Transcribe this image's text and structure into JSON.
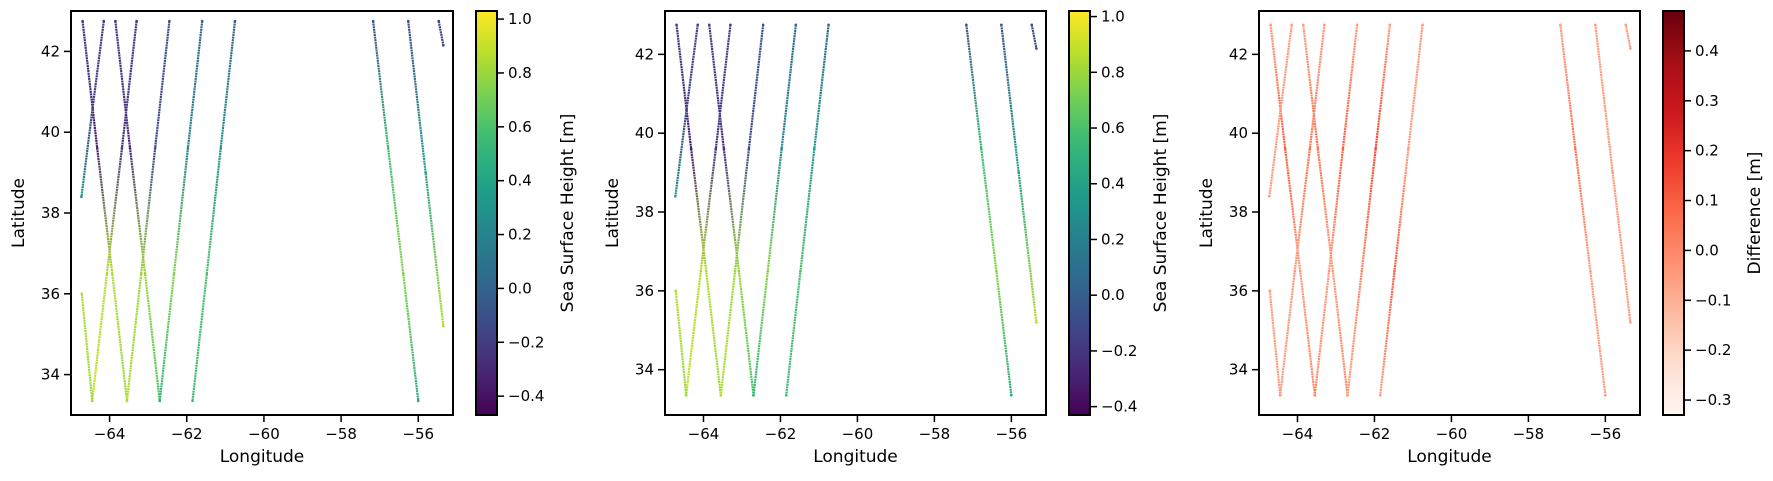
{
  "chart_data": [
    {
      "type": "scatter",
      "xlabel": "Longitude",
      "ylabel": "Latitude",
      "xlim": [
        -65.0,
        -55.1
      ],
      "ylim": [
        33.0,
        43.0
      ],
      "xticks": [
        {
          "value": -64,
          "label": "−64"
        },
        {
          "value": -62,
          "label": "−62"
        },
        {
          "value": -60,
          "label": "−60"
        },
        {
          "value": -58,
          "label": "−58"
        },
        {
          "value": -56,
          "label": "−56"
        }
      ],
      "yticks": [
        34,
        36,
        38,
        40,
        42
      ],
      "colorbar": {
        "label": "Sea Surface Height [m]",
        "colormap": "viridis",
        "lim": [
          -0.47,
          1.03
        ],
        "ticks": [
          {
            "value": -0.4,
            "label": "−0.4"
          },
          {
            "value": -0.2,
            "label": "−0.2"
          },
          {
            "value": 0.0,
            "label": "0.0"
          },
          0.2,
          0.4,
          0.6,
          0.8,
          {
            "value": 1.0,
            "label": "1.0"
          }
        ]
      },
      "tracks": [
        {
          "lon": [
            -64.7,
            -64.32,
            -63.93,
            -63.55
          ],
          "lat": [
            42.75,
            39.6,
            36.5,
            33.35
          ],
          "values": [
            -0.2,
            -0.35,
            0.85,
            0.8
          ]
        },
        {
          "lon": [
            -63.85,
            -63.47,
            -63.08,
            -62.7
          ],
          "lat": [
            42.75,
            39.6,
            36.5,
            33.35
          ],
          "values": [
            -0.2,
            -0.3,
            0.8,
            0.6
          ]
        },
        {
          "lon": [
            -63.3,
            -63.68,
            -64.07,
            -64.45
          ],
          "lat": [
            42.75,
            39.6,
            36.5,
            33.35
          ],
          "values": [
            -0.2,
            -0.25,
            0.85,
            0.9
          ]
        },
        {
          "lon": [
            -62.45,
            -62.82,
            -63.18,
            -63.55
          ],
          "lat": [
            42.75,
            39.6,
            36.5,
            33.35
          ],
          "values": [
            -0.1,
            -0.15,
            0.8,
            0.85
          ]
        },
        {
          "lon": [
            -61.6,
            -61.97,
            -62.33,
            -62.7
          ],
          "lat": [
            42.75,
            39.6,
            36.5,
            33.35
          ],
          "values": [
            0.0,
            0.2,
            0.75,
            0.5
          ]
        },
        {
          "lon": [
            -60.75,
            -61.12,
            -61.48,
            -61.85
          ],
          "lat": [
            42.75,
            39.6,
            36.5,
            33.35
          ],
          "values": [
            0.0,
            0.3,
            0.6,
            0.55
          ]
        },
        {
          "lon": [
            -64.15,
            -64.44,
            -64.73
          ],
          "lat": [
            42.75,
            40.6,
            38.4
          ],
          "values": [
            -0.2,
            -0.2,
            0.3
          ]
        },
        {
          "lon": [
            -64.72,
            -64.45
          ],
          "lat": [
            36.0,
            33.35
          ],
          "values": [
            0.85,
            0.8
          ]
        },
        {
          "lon": [
            -57.17,
            -56.78,
            -56.39,
            -56.0
          ],
          "lat": [
            42.75,
            39.6,
            36.5,
            33.35
          ],
          "values": [
            -0.1,
            0.55,
            0.75,
            0.45
          ]
        },
        {
          "lon": [
            -56.26,
            -55.81,
            -55.35
          ],
          "lat": [
            42.75,
            39.0,
            35.2
          ],
          "values": [
            -0.1,
            0.4,
            0.85
          ]
        },
        {
          "lon": [
            -55.47,
            -55.35
          ],
          "lat": [
            42.75,
            42.15
          ],
          "values": [
            -0.15,
            -0.15
          ]
        }
      ]
    },
    {
      "type": "scatter",
      "xlabel": "Longitude",
      "ylabel": "Latitude",
      "xlim": [
        -65.0,
        -55.1
      ],
      "ylim": [
        32.85,
        43.1
      ],
      "xticks": [
        {
          "value": -64,
          "label": "−64"
        },
        {
          "value": -62,
          "label": "−62"
        },
        {
          "value": -60,
          "label": "−60"
        },
        {
          "value": -58,
          "label": "−58"
        },
        {
          "value": -56,
          "label": "−56"
        }
      ],
      "yticks": [
        34,
        36,
        38,
        40,
        42
      ],
      "colorbar": {
        "label": "Sea Surface Height [m]",
        "colormap": "viridis",
        "lim": [
          -0.43,
          1.02
        ],
        "ticks": [
          {
            "value": -0.4,
            "label": "−0.4"
          },
          {
            "value": -0.2,
            "label": "−0.2"
          },
          {
            "value": 0.0,
            "label": "0.0"
          },
          0.2,
          0.4,
          0.6,
          0.8,
          {
            "value": 1.0,
            "label": "1.0"
          }
        ]
      },
      "tracks": [
        {
          "lon": [
            -64.7,
            -64.32,
            -63.93,
            -63.55
          ],
          "lat": [
            42.75,
            39.6,
            36.5,
            33.35
          ],
          "values": [
            -0.15,
            -0.3,
            0.85,
            0.8
          ]
        },
        {
          "lon": [
            -63.85,
            -63.47,
            -63.08,
            -62.7
          ],
          "lat": [
            42.75,
            39.6,
            36.5,
            33.35
          ],
          "values": [
            -0.15,
            -0.25,
            0.8,
            0.6
          ]
        },
        {
          "lon": [
            -63.3,
            -63.68,
            -64.07,
            -64.45
          ],
          "lat": [
            42.75,
            39.6,
            36.5,
            33.35
          ],
          "values": [
            -0.15,
            -0.2,
            0.85,
            0.9
          ]
        },
        {
          "lon": [
            -62.45,
            -62.82,
            -63.18,
            -63.55
          ],
          "lat": [
            42.75,
            39.6,
            36.5,
            33.35
          ],
          "values": [
            -0.05,
            -0.1,
            0.8,
            0.85
          ]
        },
        {
          "lon": [
            -61.6,
            -61.97,
            -62.33,
            -62.7
          ],
          "lat": [
            42.75,
            39.6,
            36.5,
            33.35
          ],
          "values": [
            0.05,
            0.25,
            0.75,
            0.5
          ]
        },
        {
          "lon": [
            -60.75,
            -61.12,
            -61.48,
            -61.85
          ],
          "lat": [
            42.75,
            39.6,
            36.5,
            33.35
          ],
          "values": [
            0.05,
            0.35,
            0.6,
            0.55
          ]
        },
        {
          "lon": [
            -64.15,
            -64.44,
            -64.73
          ],
          "lat": [
            42.75,
            40.6,
            38.4
          ],
          "values": [
            -0.15,
            -0.15,
            0.3
          ]
        },
        {
          "lon": [
            -64.72,
            -64.45
          ],
          "lat": [
            36.0,
            33.35
          ],
          "values": [
            0.85,
            0.8
          ]
        },
        {
          "lon": [
            -57.17,
            -56.78,
            -56.39,
            -56.0
          ],
          "lat": [
            42.75,
            39.6,
            36.5,
            33.35
          ],
          "values": [
            -0.05,
            0.55,
            0.75,
            0.45
          ]
        },
        {
          "lon": [
            -56.26,
            -55.81,
            -55.35
          ],
          "lat": [
            42.75,
            39.0,
            35.2
          ],
          "values": [
            -0.05,
            0.4,
            0.85
          ]
        },
        {
          "lon": [
            -55.47,
            -55.35
          ],
          "lat": [
            42.75,
            42.15
          ],
          "values": [
            -0.1,
            -0.1
          ]
        }
      ]
    },
    {
      "type": "scatter",
      "xlabel": "Longitude",
      "ylabel": "Latitude",
      "xlim": [
        -65.0,
        -55.1
      ],
      "ylim": [
        32.85,
        43.1
      ],
      "xticks": [
        {
          "value": -64,
          "label": "−64"
        },
        {
          "value": -62,
          "label": "−62"
        },
        {
          "value": -60,
          "label": "−60"
        },
        {
          "value": -58,
          "label": "−58"
        },
        {
          "value": -56,
          "label": "−56"
        }
      ],
      "yticks": [
        34,
        36,
        38,
        40,
        42
      ],
      "colorbar": {
        "label": "Difference [m]",
        "colormap": "Reds",
        "lim": [
          -0.33,
          0.48
        ],
        "ticks": [
          {
            "value": -0.3,
            "label": "−0.3"
          },
          {
            "value": -0.2,
            "label": "−0.2"
          },
          {
            "value": -0.1,
            "label": "−0.1"
          },
          {
            "value": 0.0,
            "label": "0.0"
          },
          0.1,
          0.2,
          0.3,
          0.4
        ]
      },
      "tracks": [
        {
          "lon": [
            -64.7,
            -64.32,
            -63.93,
            -63.55
          ],
          "lat": [
            42.75,
            39.6,
            36.5,
            33.35
          ],
          "values": [
            -0.05,
            0.1,
            -0.05,
            0.0
          ]
        },
        {
          "lon": [
            -63.85,
            -63.47,
            -63.08,
            -62.7
          ],
          "lat": [
            42.75,
            39.6,
            36.5,
            33.35
          ],
          "values": [
            -0.05,
            0.05,
            -0.05,
            0.0
          ]
        },
        {
          "lon": [
            -63.3,
            -63.68,
            -64.07,
            -64.45
          ],
          "lat": [
            42.75,
            39.6,
            36.5,
            33.35
          ],
          "values": [
            -0.05,
            0.05,
            -0.05,
            -0.05
          ]
        },
        {
          "lon": [
            -62.45,
            -62.82,
            -63.18,
            -63.55
          ],
          "lat": [
            42.75,
            39.6,
            36.5,
            33.35
          ],
          "values": [
            -0.05,
            0.1,
            -0.05,
            0.0
          ]
        },
        {
          "lon": [
            -61.6,
            -61.97,
            -62.33,
            -62.7
          ],
          "lat": [
            42.75,
            39.6,
            36.5,
            33.35
          ],
          "values": [
            -0.05,
            0.15,
            0.0,
            -0.05
          ]
        },
        {
          "lon": [
            -60.75,
            -61.12,
            -61.48,
            -61.85
          ],
          "lat": [
            42.75,
            39.6,
            36.5,
            33.35
          ],
          "values": [
            -0.05,
            -0.05,
            0.1,
            -0.05
          ]
        },
        {
          "lon": [
            -64.15,
            -64.44,
            -64.73
          ],
          "lat": [
            42.75,
            40.6,
            38.4
          ],
          "values": [
            -0.05,
            -0.05,
            -0.05
          ]
        },
        {
          "lon": [
            -64.72,
            -64.45
          ],
          "lat": [
            36.0,
            33.35
          ],
          "values": [
            -0.05,
            -0.05
          ]
        },
        {
          "lon": [
            -57.17,
            -56.78,
            -56.39,
            -56.0
          ],
          "lat": [
            42.75,
            39.6,
            36.5,
            33.35
          ],
          "values": [
            -0.05,
            0.05,
            -0.05,
            -0.05
          ]
        },
        {
          "lon": [
            -56.26,
            -55.81,
            -55.35
          ],
          "lat": [
            42.75,
            39.0,
            35.2
          ],
          "values": [
            -0.05,
            -0.05,
            -0.05
          ]
        },
        {
          "lon": [
            -55.47,
            -55.35
          ],
          "lat": [
            42.75,
            42.15
          ],
          "values": [
            -0.05,
            -0.05
          ]
        }
      ]
    }
  ]
}
